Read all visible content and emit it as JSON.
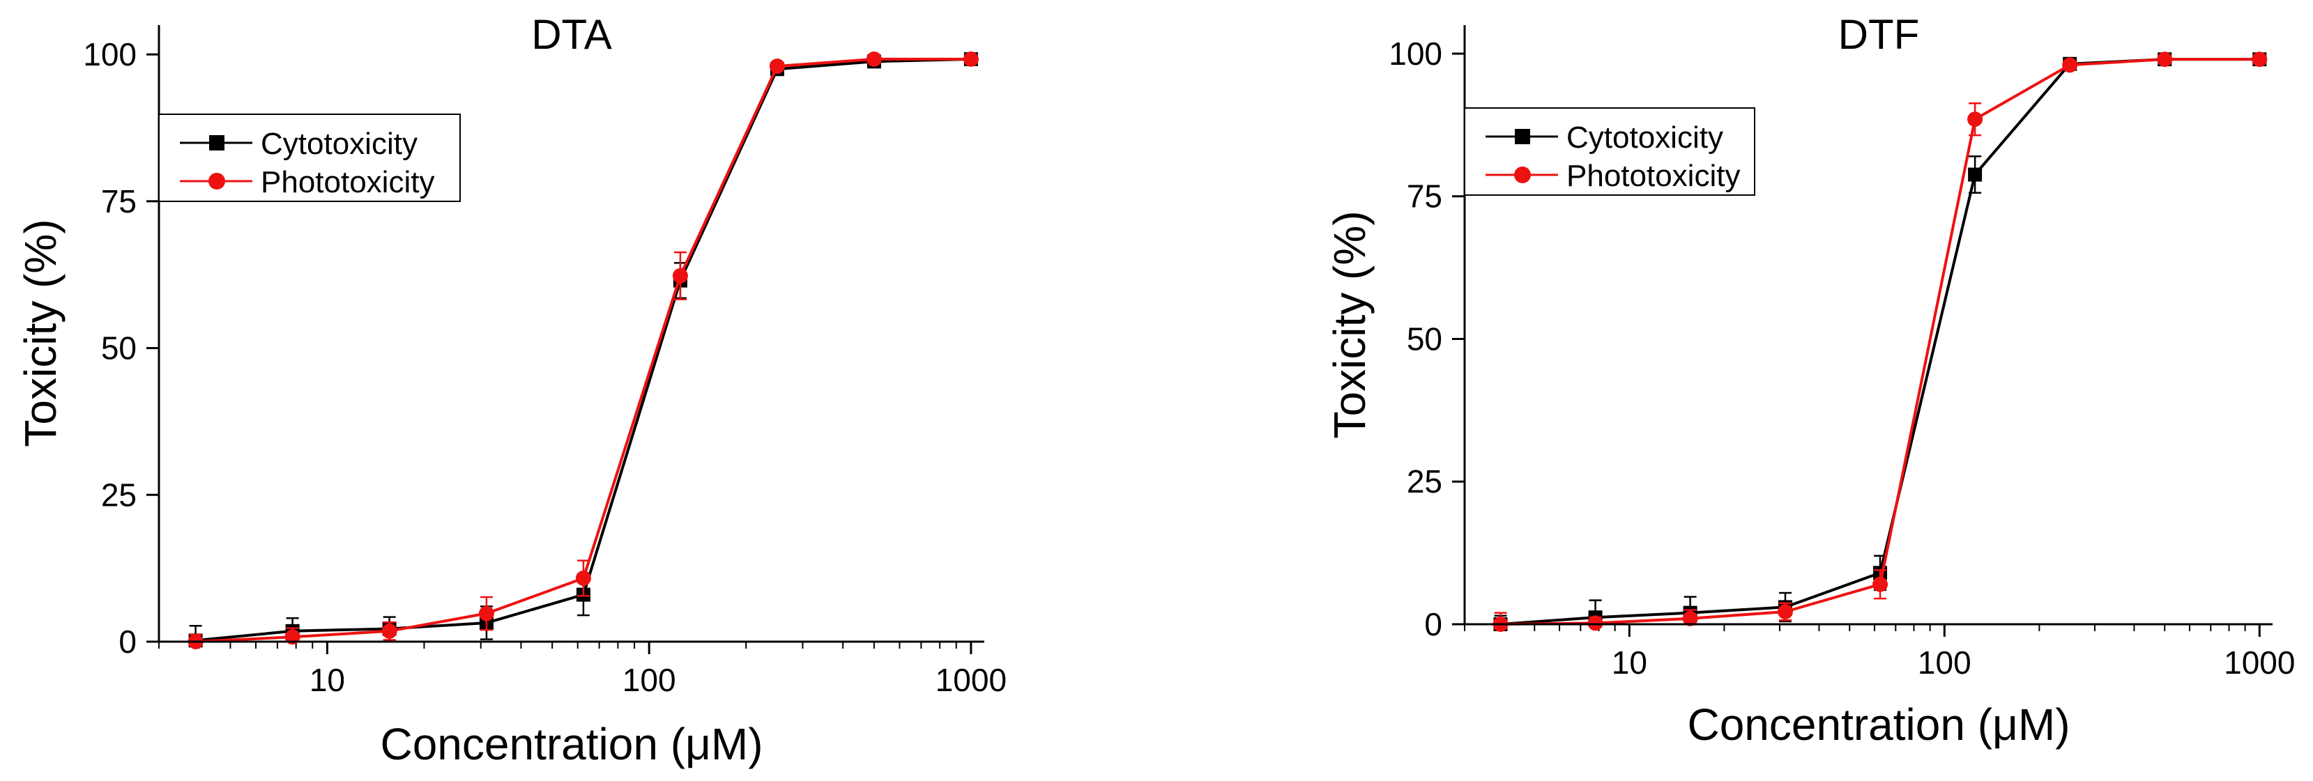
{
  "chart_data": [
    {
      "type": "line",
      "title": "DTA",
      "xlabel": "Concentration (μM)",
      "ylabel": "Toxicity (%)",
      "xscale": "log",
      "xlim": [
        3,
        1100
      ],
      "ylim": [
        0,
        105
      ],
      "xticks": [
        10,
        100,
        1000
      ],
      "xtick_labels": [
        "10",
        "100",
        "1000"
      ],
      "yticks": [
        0,
        25,
        50,
        75,
        100
      ],
      "ytick_labels": [
        "0",
        "25",
        "50",
        "75",
        "100"
      ],
      "legend_position": "top-left",
      "x": [
        3.9,
        7.8,
        15.6,
        31.25,
        62.5,
        125,
        250,
        500,
        1000
      ],
      "series": [
        {
          "name": "Cytotoxicity",
          "color": "#000000",
          "marker": "square",
          "values": [
            0.2,
            1.8,
            2.2,
            3.2,
            8.0,
            61.5,
            97.5,
            98.8,
            99.2
          ],
          "errors": [
            2.5,
            2.2,
            2.0,
            2.8,
            3.5,
            3.0,
            0.6,
            0.5,
            0.4
          ]
        },
        {
          "name": "Phototoxicity",
          "color": "#ee1111",
          "marker": "circle",
          "values": [
            0.0,
            0.8,
            1.8,
            4.8,
            10.8,
            62.3,
            98.0,
            99.2,
            99.2
          ],
          "errors": [
            1.2,
            1.5,
            1.5,
            2.8,
            3.0,
            4.0,
            0.6,
            0.5,
            0.4
          ]
        }
      ]
    },
    {
      "type": "line",
      "title": "DTF",
      "xlabel": "Concentration (μM)",
      "ylabel": "Toxicity (%)",
      "xscale": "log",
      "xlim": [
        3,
        1100
      ],
      "ylim": [
        0,
        105
      ],
      "xticks": [
        10,
        100,
        1000
      ],
      "xtick_labels": [
        "10",
        "100",
        "1000"
      ],
      "yticks": [
        0,
        25,
        50,
        75,
        100
      ],
      "ytick_labels": [
        "0",
        "25",
        "50",
        "75",
        "100"
      ],
      "legend_position": "top-left",
      "x": [
        3.9,
        7.8,
        15.6,
        31.25,
        62.5,
        125,
        250,
        500,
        1000
      ],
      "series": [
        {
          "name": "Cytotoxicity",
          "color": "#000000",
          "marker": "square",
          "values": [
            0.0,
            1.2,
            2.0,
            3.0,
            9.0,
            78.8,
            98.2,
            99.0,
            99.0
          ],
          "errors": [
            1.5,
            3.0,
            2.8,
            2.5,
            3.0,
            3.2,
            0.6,
            0.5,
            0.4
          ]
        },
        {
          "name": "Phototoxicity",
          "color": "#ee1111",
          "marker": "circle",
          "values": [
            0.0,
            0.2,
            1.0,
            2.2,
            7.0,
            88.5,
            98.0,
            99.0,
            99.0
          ],
          "errors": [
            2.0,
            1.0,
            1.5,
            1.5,
            2.5,
            2.8,
            0.6,
            0.5,
            0.4
          ]
        }
      ]
    }
  ]
}
